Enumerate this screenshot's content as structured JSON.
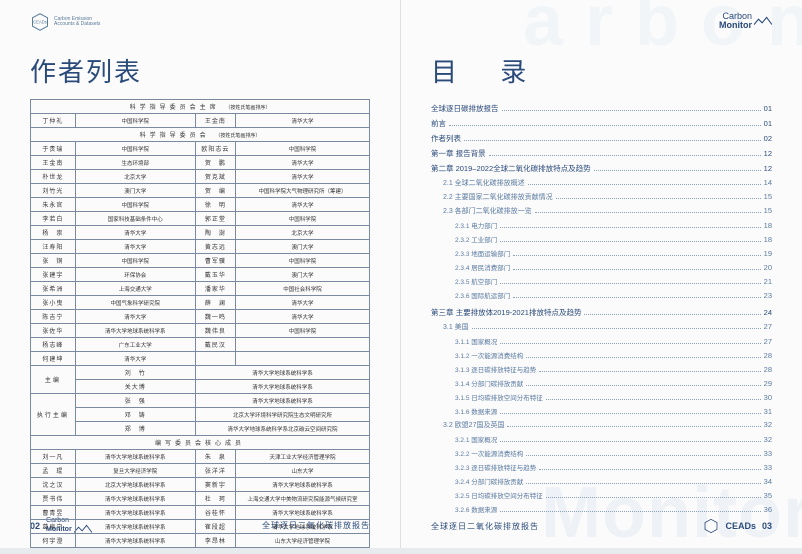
{
  "colors": {
    "primary": "#2a4a7a",
    "border": "#7a8aa0",
    "muted": "#5a7aa0",
    "bg": "#fbfbfb",
    "watermark": "#eef2f6"
  },
  "logos": {
    "ceads_label": "CEADs",
    "ceads_sub1": "Carbon Emission",
    "ceads_sub2": "Accounts & Datasets",
    "monitor1": "Carbon",
    "monitor2": "Monitor"
  },
  "left": {
    "title": "作者列表",
    "footer_pageno": "02",
    "footer_title": "全球逐日二氧化碳排放报告",
    "sections": [
      {
        "header": "科学指导委员会主席",
        "sub": "（按姓氏笔画排序）",
        "rows": [
          [
            "丁仲礼",
            "中国科学院",
            "王金南",
            "清华大学"
          ]
        ]
      },
      {
        "header": "科学指导委员会",
        "sub": "（按姓氏笔画排序）",
        "rows": [
          [
            "于贵瑞",
            "中国科学院",
            "欧阳志云",
            "中国科学院"
          ],
          [
            "王金南",
            "生态环境部",
            "贺　鹏",
            "清华大学"
          ],
          [
            "朴世龙",
            "北京大学",
            "贺克斌",
            "清华大学"
          ],
          [
            "刘竹光",
            "澳门大学",
            "贺　编",
            "中国科学院大气物理研究所（筹建）"
          ],
          [
            "朱永官",
            "中国科学院",
            "徐　明",
            "清华大学"
          ],
          [
            "李若白",
            "国家科技基础条件中心",
            "郭正堂",
            "中国科学院"
          ],
          [
            "杨　崇",
            "清华大学",
            "陶　澍",
            "北京大学"
          ],
          [
            "汪寿阳",
            "清华大学",
            "黄志远",
            "澳门大学"
          ],
          [
            "张　铜",
            "中国科学院",
            "曹军骥",
            "中国科学院"
          ],
          [
            "张建宇",
            "环保协会",
            "戴玉华",
            "澳门大学"
          ],
          [
            "张希洲",
            "上海交通大学",
            "潘家华",
            "中国社会科学院"
          ],
          [
            "张小曳",
            "中国气象科学研究院",
            "薛　澜",
            "清华大学"
          ],
          [
            "陈吉宁",
            "清华大学",
            "魏一鸣",
            "清华大学"
          ],
          [
            "张佐华",
            "清华大学地球系统科学系",
            "魏伟良",
            "中国科学院"
          ],
          [
            "杨志峰",
            "广东工业大学",
            "戴民汉",
            ""
          ],
          [
            "何建坤",
            "清华大学",
            "",
            ""
          ]
        ]
      }
    ],
    "roles": [
      {
        "role": "主编",
        "rows": [
          [
            "刘　竹",
            "清华大学地球系统科学系"
          ],
          [
            "关大博",
            "清华大学地球系统科学系"
          ]
        ]
      },
      {
        "role": "执行主编",
        "rows": [
          [
            "张　强",
            "清华大学地球系统科学系"
          ],
          [
            "邓　铸",
            "北京大学环境科学研究院生态文明研究所"
          ],
          [
            "郑　博",
            "清华大学地球系统科学系北京碳云空间研究院"
          ]
        ]
      }
    ],
    "core": {
      "header": "编写委员会核心成员",
      "rows": [
        [
          "刘一凡",
          "清华大学地球系统科学系",
          "朱　泉",
          "天津工业大学经济管理学院"
        ],
        [
          "孟　琨",
          "复旦大学经济学院",
          "张洋洋",
          "山东大学"
        ],
        [
          "沈之汉",
          "北京大学地球系统科学系",
          "窦新宇",
          "清华大学地球系统科学系"
        ],
        [
          "贾书伟",
          "清华大学地球系统科学系",
          "杜　珂",
          "上海交通大学中美物流研究院能源气候研究室"
        ],
        [
          "曹青昱",
          "清华大学地球系统科学系",
          "谷桂怀",
          "清华大学地球系统科学系"
        ],
        [
          "葛泉宁",
          "清华大学地球系统科学系",
          "崔段超",
          "清华大学地球系统科学系"
        ],
        [
          "何宇澄",
          "清华大学地球系统科学系",
          "李昂林",
          "山东大学经济管理学院"
        ]
      ]
    }
  },
  "right": {
    "title": "目 录",
    "footer_pageno": "03",
    "footer_title": "全球逐日二氧化碳排放报告",
    "watermark": "Monitor",
    "watermark_top": "a r b o n",
    "toc": [
      {
        "lvl": 0,
        "label": "全球逐日碳排放报告",
        "page": "01"
      },
      {
        "lvl": 0,
        "label": "前言",
        "page": "01"
      },
      {
        "lvl": 0,
        "label": "作者列表",
        "page": "02"
      },
      {
        "lvl": 0,
        "label": "第一章 报告背景",
        "page": "12"
      },
      {
        "lvl": 0,
        "label": "第二章 2019–2022全球二氧化碳排放特点及趋势",
        "page": "12"
      },
      {
        "lvl": 1,
        "label": "2.1 全球二氧化碳排放概述",
        "page": "14"
      },
      {
        "lvl": 1,
        "label": "2.2 主要国家二氧化碳排放贡献情况",
        "page": "15"
      },
      {
        "lvl": 1,
        "label": "2.3 各部门二氧化碳排放一览",
        "page": "15"
      },
      {
        "lvl": 2,
        "label": "2.3.1 电力部门",
        "page": "18"
      },
      {
        "lvl": 2,
        "label": "2.3.2 工业部门",
        "page": "18"
      },
      {
        "lvl": 2,
        "label": "2.3.3 地面运输部门",
        "page": "19"
      },
      {
        "lvl": 2,
        "label": "2.3.4 居民消费部门",
        "page": "20"
      },
      {
        "lvl": 2,
        "label": "2.3.5 航空部门",
        "page": "21"
      },
      {
        "lvl": 2,
        "label": "2.3.6 国际航运部门",
        "page": "23"
      },
      {
        "lvl": 0,
        "label": "第三章 主要排放体2019-2021排放特点及趋势",
        "page": "24"
      },
      {
        "lvl": 1,
        "label": "3.1 美国",
        "page": "27"
      },
      {
        "lvl": 2,
        "label": "3.1.1 国家概况",
        "page": "27"
      },
      {
        "lvl": 2,
        "label": "3.1.2 一次能源消费结构",
        "page": "28"
      },
      {
        "lvl": 2,
        "label": "3.1.3 逐日碳排放特征与趋势",
        "page": "28"
      },
      {
        "lvl": 2,
        "label": "3.1.4 分部门碳排放贡献",
        "page": "29"
      },
      {
        "lvl": 2,
        "label": "3.1.5 日均碳排放空间分布特征",
        "page": "30"
      },
      {
        "lvl": 2,
        "label": "3.1.6 数据来源",
        "page": "31"
      },
      {
        "lvl": 1,
        "label": "3.2 欧盟27国及英国",
        "page": "32"
      },
      {
        "lvl": 2,
        "label": "3.2.1 国家概况",
        "page": "32"
      },
      {
        "lvl": 2,
        "label": "3.2.2 一次能源消费结构",
        "page": "33"
      },
      {
        "lvl": 2,
        "label": "3.2.3 逐日碳排放特征与趋势",
        "page": "33"
      },
      {
        "lvl": 2,
        "label": "3.2.4 分部门碳排放贡献",
        "page": "34"
      },
      {
        "lvl": 2,
        "label": "3.2.5 日均碳排放空间分布特征",
        "page": "35"
      },
      {
        "lvl": 2,
        "label": "3.2.6 数据来源",
        "page": "36"
      }
    ]
  }
}
